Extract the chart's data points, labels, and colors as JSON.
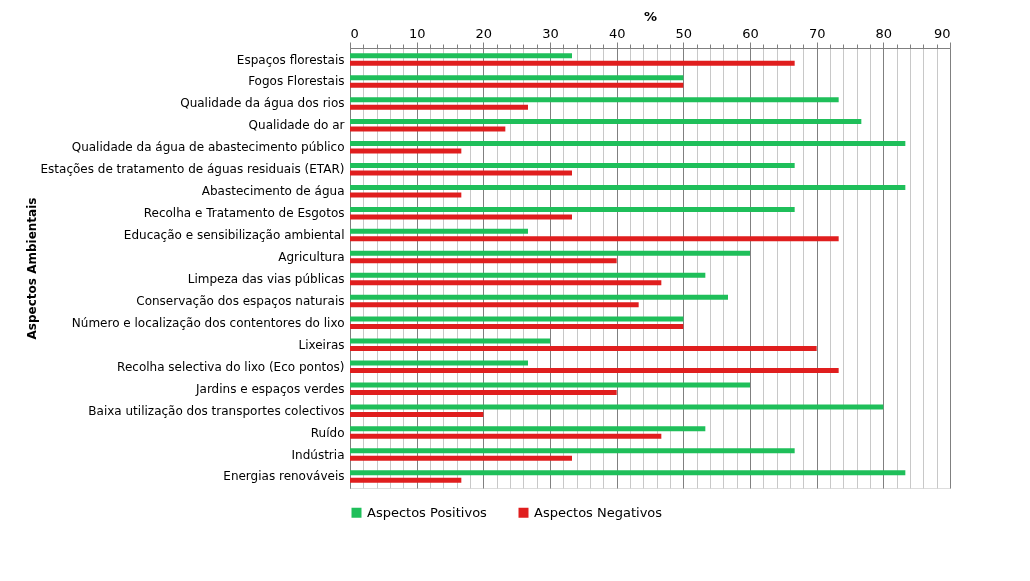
{
  "chart_data": {
    "type": "bar",
    "orientation": "horizontal",
    "xlabel": "%",
    "ylabel": "Aspectos Ambientais",
    "categories": [
      "Espaços florestais",
      "Fogos Florestais",
      "Qualidade da água dos rios",
      "Qualidade do ar",
      "Qualidade da água de abastecimento público",
      "Estações de tratamento de águas residuais (ETAR)",
      "Abastecimento de água",
      "Recolha e Tratamento de Esgotos",
      "Educação e sensibilização ambiental",
      "Agricultura",
      "Limpeza das vias públicas",
      "Conservação dos espaços naturais",
      "Número e localização dos contentores do lixo",
      "Lixeiras",
      "Recolha selectiva do lixo (Eco pontos)",
      "Jardins e espaços verdes",
      "Baixa utilização dos transportes colectivos",
      "Ruído",
      "Indústria",
      "Energias renováveis"
    ],
    "series": [
      {
        "name": "Aspectos Positivos",
        "color": "#1fbf5a",
        "values": [
          33.3,
          50,
          73.3,
          76.7,
          83.3,
          66.7,
          83.3,
          66.7,
          26.7,
          60,
          53.3,
          56.7,
          50,
          30,
          26.7,
          60,
          80,
          53.3,
          66.7,
          83.3
        ]
      },
      {
        "name": "Aspectos Negativos",
        "color": "#e01e1e",
        "values": [
          66.7,
          50,
          26.7,
          23.3,
          16.7,
          33.3,
          16.7,
          33.3,
          73.3,
          40,
          46.7,
          43.3,
          50,
          70,
          73.3,
          40,
          20,
          46.7,
          33.3,
          16.7
        ]
      }
    ],
    "xlim": [
      0,
      90
    ],
    "xticks": [
      0,
      {
        "value": 2,
        "label": null
      },
      {
        "value": 4,
        "label": null
      },
      {
        "value": 6,
        "label": null
      },
      {
        "value": 8,
        "label": null
      },
      10,
      {
        "value": 12,
        "label": null
      },
      {
        "value": 14,
        "label": null
      },
      {
        "value": 16,
        "label": null
      },
      {
        "value": 18,
        "label": null
      },
      20,
      {
        "value": 22,
        "label": null
      },
      {
        "value": 24,
        "label": null
      },
      {
        "value": 26,
        "label": null
      },
      {
        "value": 28,
        "label": null
      },
      30,
      {
        "value": 32,
        "label": null
      },
      {
        "value": 34,
        "label": null
      },
      {
        "value": 36,
        "label": null
      },
      {
        "value": 38,
        "label": null
      },
      40,
      {
        "value": 42,
        "label": null
      },
      {
        "value": 44,
        "label": null
      },
      {
        "value": 46,
        "label": null
      },
      {
        "value": 48,
        "label": null
      },
      50,
      {
        "value": 52,
        "label": null
      },
      {
        "value": 54,
        "label": null
      },
      {
        "value": 56,
        "label": null
      },
      {
        "value": 58,
        "label": null
      },
      60,
      {
        "value": 62,
        "label": null
      },
      {
        "value": 64,
        "label": null
      },
      {
        "value": 66,
        "label": null
      },
      {
        "value": 68,
        "label": null
      },
      70,
      {
        "value": 72,
        "label": null
      },
      {
        "value": 74,
        "label": null
      },
      {
        "value": 76,
        "label": null
      },
      {
        "value": 78,
        "label": null
      },
      80,
      {
        "value": 82,
        "label": null
      },
      {
        "value": 84,
        "label": null
      },
      {
        "value": 86,
        "label": null
      },
      {
        "value": 88,
        "label": null
      },
      90
    ],
    "grid": "x",
    "legend": "bottom"
  }
}
